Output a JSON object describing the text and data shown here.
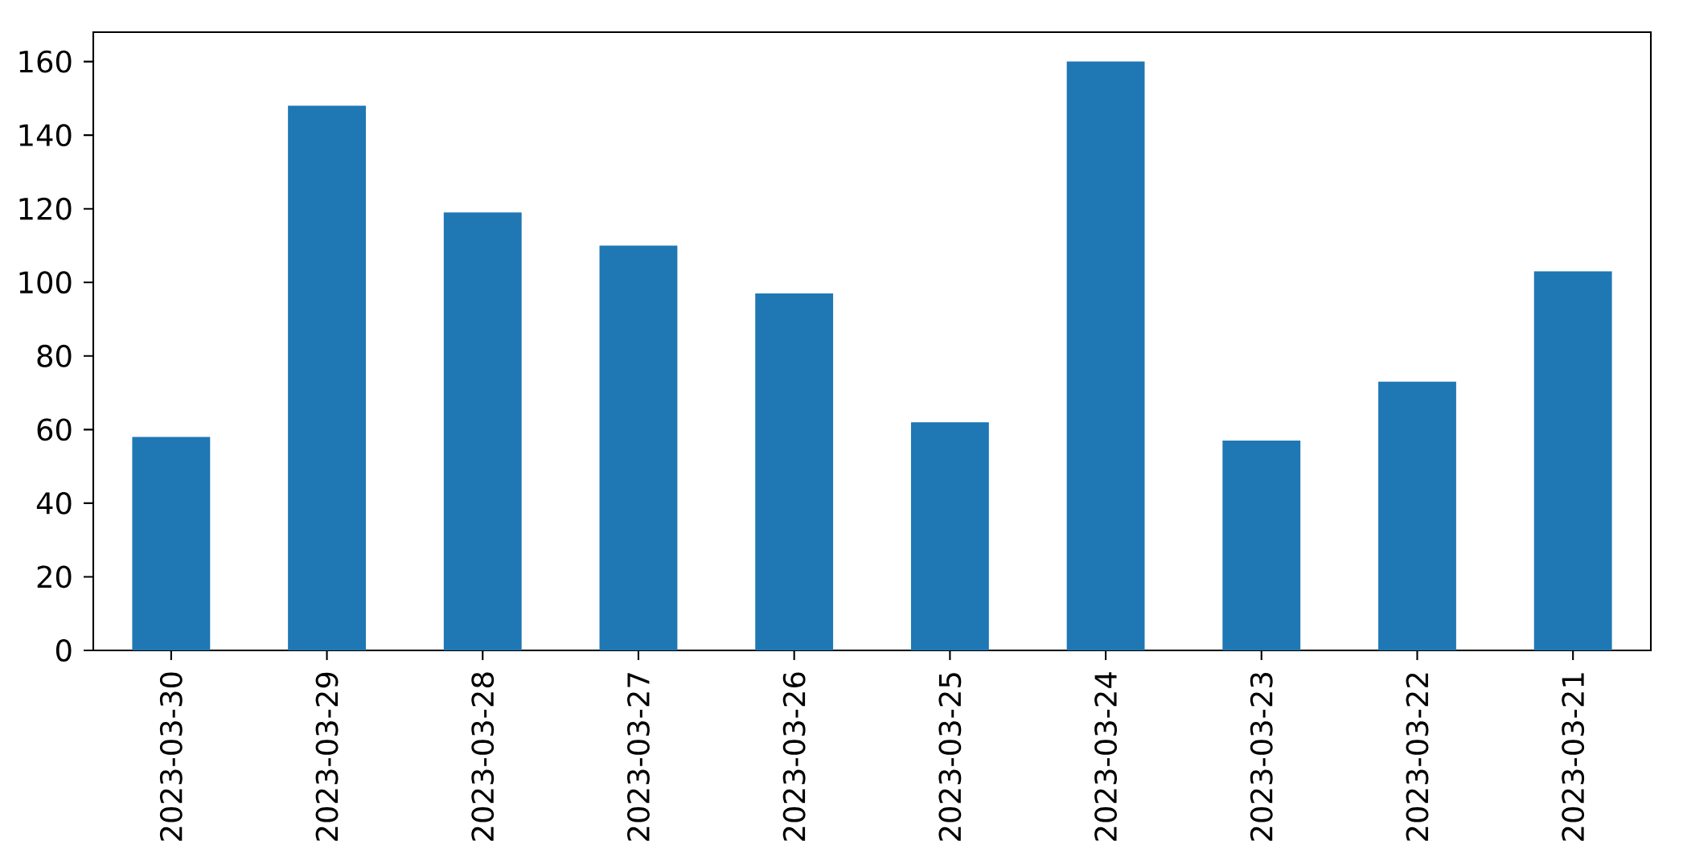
{
  "chart_data": {
    "type": "bar",
    "categories": [
      "2023-03-30",
      "2023-03-29",
      "2023-03-28",
      "2023-03-27",
      "2023-03-26",
      "2023-03-25",
      "2023-03-24",
      "2023-03-23",
      "2023-03-22",
      "2023-03-21"
    ],
    "values": [
      58,
      148,
      119,
      110,
      97,
      62,
      160,
      57,
      73,
      103
    ],
    "color": "#1f77b4",
    "ylim": [
      0,
      168
    ],
    "yticks": [
      0,
      20,
      40,
      60,
      80,
      100,
      120,
      140,
      160
    ]
  }
}
